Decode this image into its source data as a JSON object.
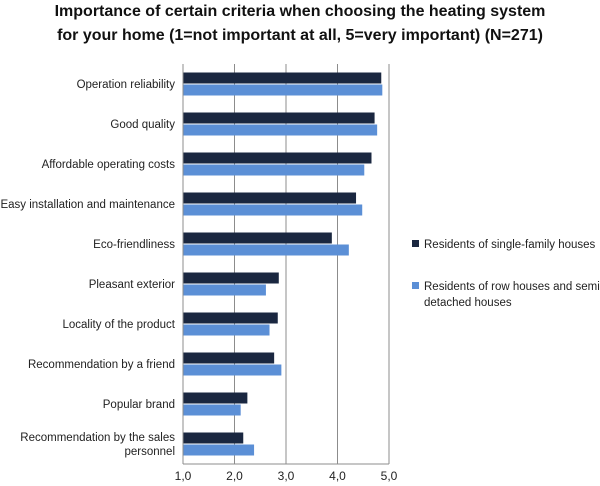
{
  "chart_data": {
    "type": "bar",
    "orientation": "horizontal",
    "title": [
      "Importance of certain criteria when choosing the heating system",
      "for your home (1=not important at all, 5=very important) (N=271)"
    ],
    "categories": [
      [
        "Operation reliability"
      ],
      [
        "Good quality"
      ],
      [
        "Affordable operating costs"
      ],
      [
        "Easy installation and maintenance"
      ],
      [
        "Eco-friendliness"
      ],
      [
        "Pleasant exterior"
      ],
      [
        "Locality of the product"
      ],
      [
        "Recommendation by a friend"
      ],
      [
        "Popular brand"
      ],
      [
        "Recommendation by the sales",
        "personnel"
      ]
    ],
    "series": [
      {
        "name": "Residents of single-family houses",
        "legend_lines": [
          "Residents of single-family houses"
        ],
        "color": "#1a2740",
        "values": [
          4.85,
          4.72,
          4.66,
          4.36,
          3.89,
          2.86,
          2.84,
          2.77,
          2.25,
          2.17
        ]
      },
      {
        "name": "Residents of row houses and semi-detached houses",
        "legend_lines": [
          "Residents of row houses and semi-",
          "detached houses"
        ],
        "color": "#5b8fd6",
        "values": [
          4.87,
          4.77,
          4.52,
          4.48,
          4.22,
          2.61,
          2.68,
          2.91,
          2.12,
          2.38
        ]
      }
    ],
    "xlim": [
      1.0,
      5.0
    ],
    "xticks": [
      "1,0",
      "2,0",
      "3,0",
      "4,0",
      "5,0"
    ],
    "gridlines": "vertical",
    "legend_position": "right"
  }
}
